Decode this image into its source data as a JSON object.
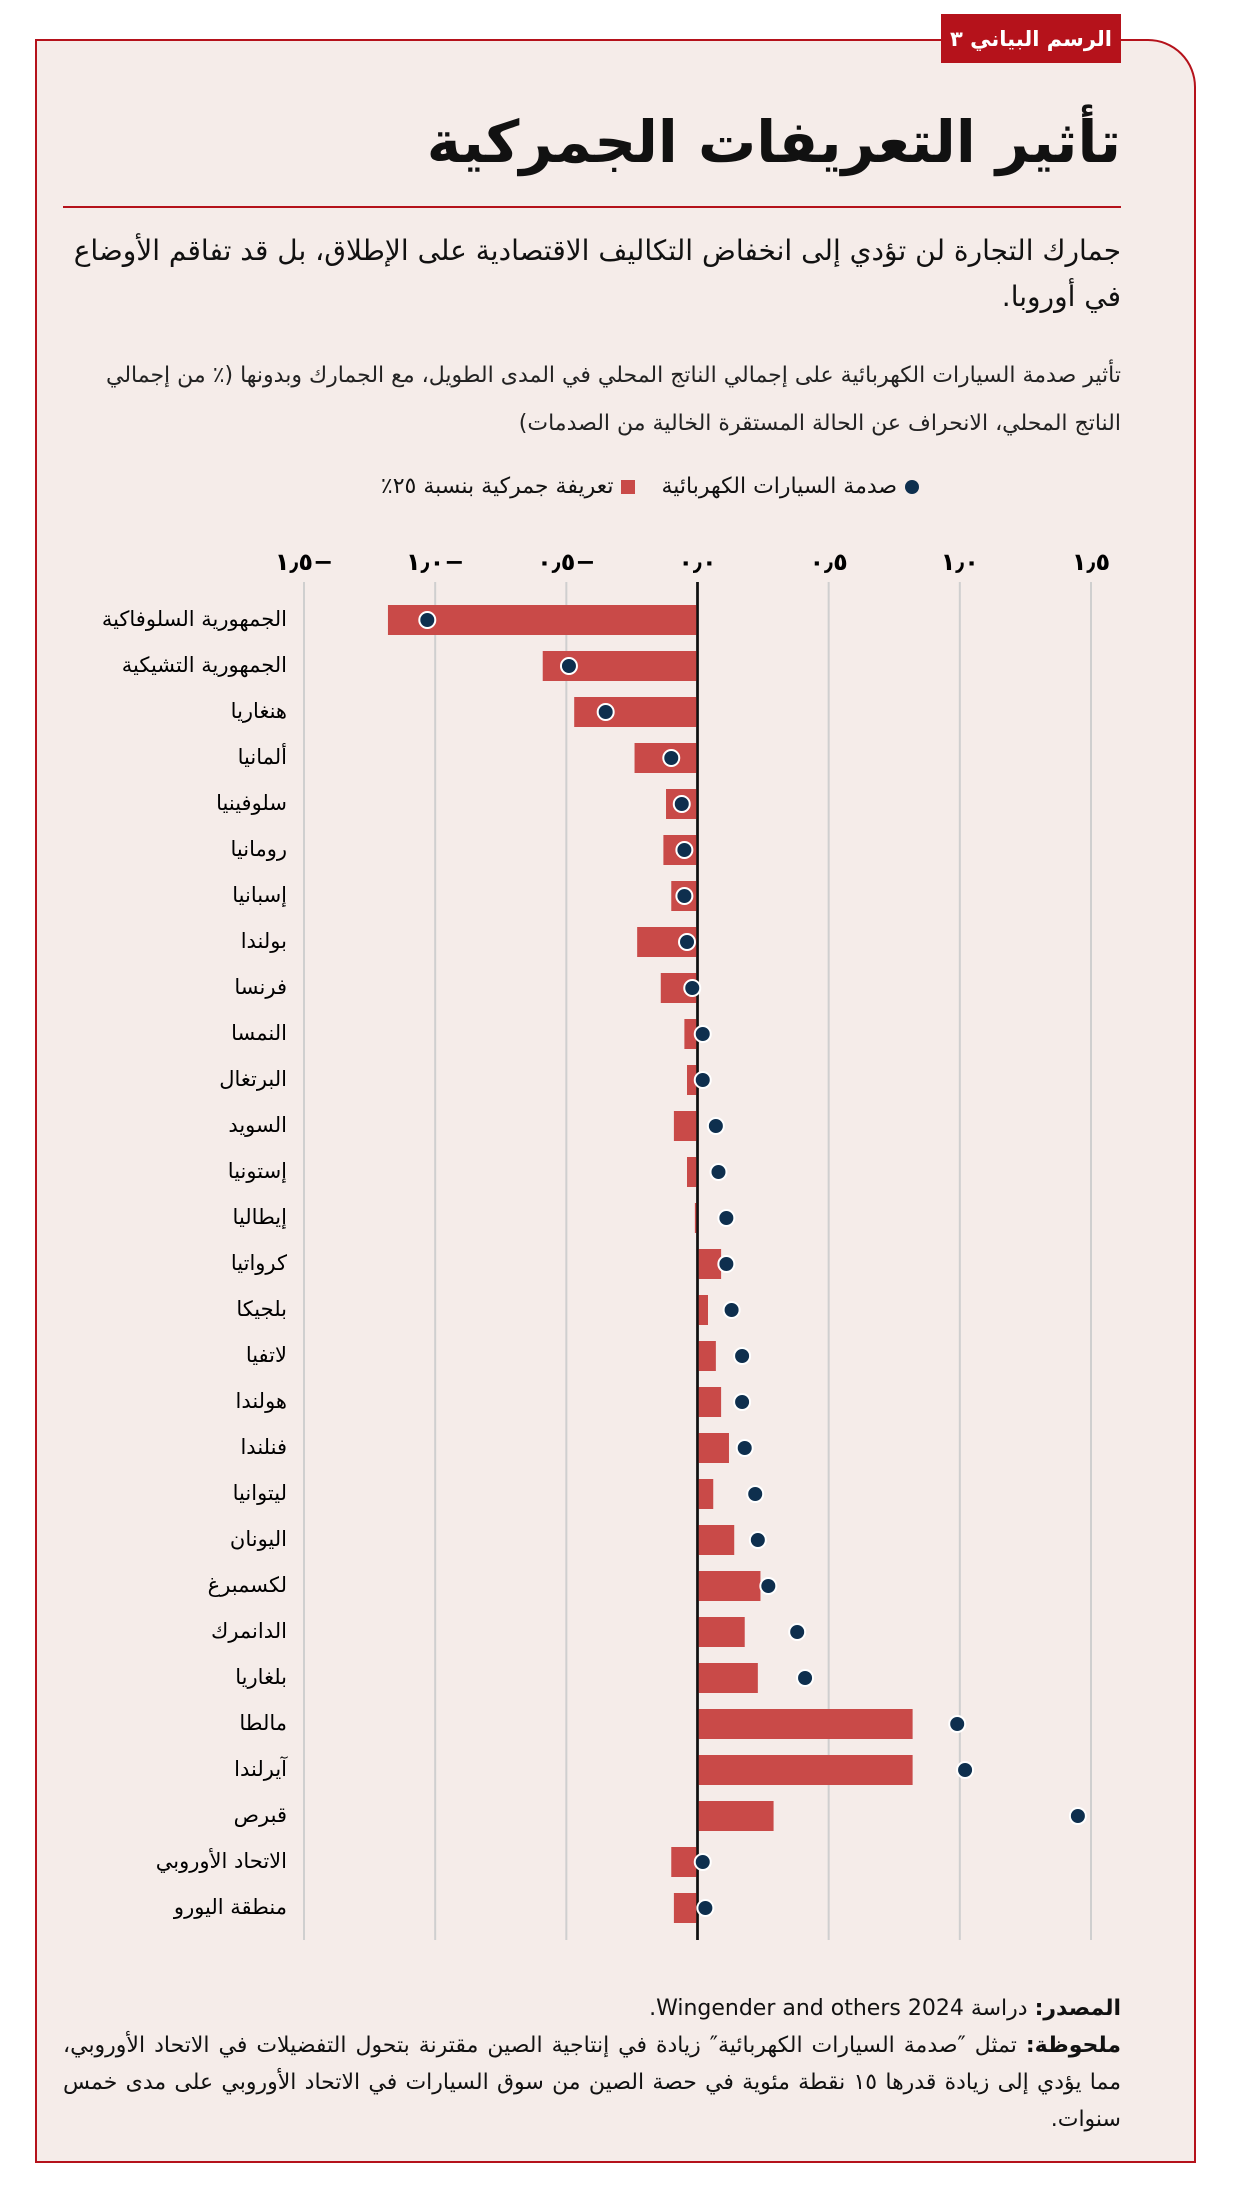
{
  "figure_label": "الرسم البياني ٣",
  "chart_data": {
    "type": "bar",
    "orientation": "horizontal",
    "title": "تأثير التعريفات الجمركية",
    "subtitle": "جمارك التجارة لن تؤدي إلى انخفاض التكاليف الاقتصادية على الإطلاق، بل قد تفاقم الأوضاع في أوروبا.",
    "description": "تأثير صدمة السيارات الكهربائية على إجمالي الناتج المحلي في المدى الطويل، مع الجمارك وبدونها (٪ من إجمالي الناتج المحلي، الانحراف عن الحالة المستقرة الخالية من الصدمات)",
    "categories": [
      "الجمهورية السلوفاكية",
      "الجمهورية التشيكية",
      "هنغاريا",
      "ألمانيا",
      "سلوفينيا",
      "رومانيا",
      "إسبانيا",
      "بولندا",
      "فرنسا",
      "النمسا",
      "البرتغال",
      "السويد",
      "إستونيا",
      "إيطاليا",
      "كرواتيا",
      "بلجيكا",
      "لاتفيا",
      "هولندا",
      "فنلندا",
      "ليتوانيا",
      "اليونان",
      "لكسمبرغ",
      "الدانمرك",
      "بلغاريا",
      "مالطا",
      "آيرلندا",
      "قبرص",
      "الاتحاد الأوروبي",
      "منطقة اليورو"
    ],
    "series": [
      {
        "name": "صدمة السيارات الكهربائية",
        "mark": "dot",
        "color": "#0e2f4e",
        "values": [
          -1.03,
          -0.49,
          -0.35,
          -0.1,
          -0.06,
          -0.05,
          -0.05,
          -0.04,
          -0.02,
          0.02,
          0.02,
          0.07,
          0.08,
          0.11,
          0.11,
          0.13,
          0.17,
          0.17,
          0.18,
          0.22,
          0.23,
          0.27,
          0.38,
          0.41,
          0.99,
          1.02,
          1.45,
          0.02,
          0.03
        ]
      },
      {
        "name": "تعريفة جمركية بنسبة ٢٥٪",
        "mark": "bar",
        "color": "#c94a48",
        "values": [
          -1.18,
          -0.59,
          -0.47,
          -0.24,
          -0.12,
          -0.13,
          -0.1,
          -0.23,
          -0.14,
          -0.05,
          -0.04,
          -0.09,
          -0.04,
          -0.01,
          0.09,
          0.04,
          0.07,
          0.09,
          0.12,
          0.06,
          0.14,
          0.24,
          0.18,
          0.23,
          0.82,
          0.82,
          0.29,
          -0.1,
          -0.09
        ]
      }
    ],
    "xlim": [
      -1.5,
      1.5
    ],
    "xticks": [
      {
        "value": -1.5,
        "label": "−١٫٥"
      },
      {
        "value": -1.0,
        "label": "−١٫٠"
      },
      {
        "value": -0.5,
        "label": "−٠٫٥"
      },
      {
        "value": 0,
        "label": "٠٫٠"
      },
      {
        "value": 0.5,
        "label": "٠٫٥"
      },
      {
        "value": 1.0,
        "label": "١٫٠"
      },
      {
        "value": 1.5,
        "label": "١٫٥"
      }
    ],
    "grid": true
  },
  "footer": {
    "source_label": "المصدر:",
    "source": "دراسة Wingender and others 2024.",
    "note_label": "ملحوظة:",
    "note": "تمثل ″صدمة السيارات الكهربائية″ زيادة في إنتاجية الصين مقترنة بتحول التفضيلات في الاتحاد الأوروبي، مما يؤدي إلى زيادة قدرها ١٥ نقطة مئوية في حصة الصين من سوق السيارات في الاتحاد الأوروبي على مدى خمس سنوات."
  }
}
